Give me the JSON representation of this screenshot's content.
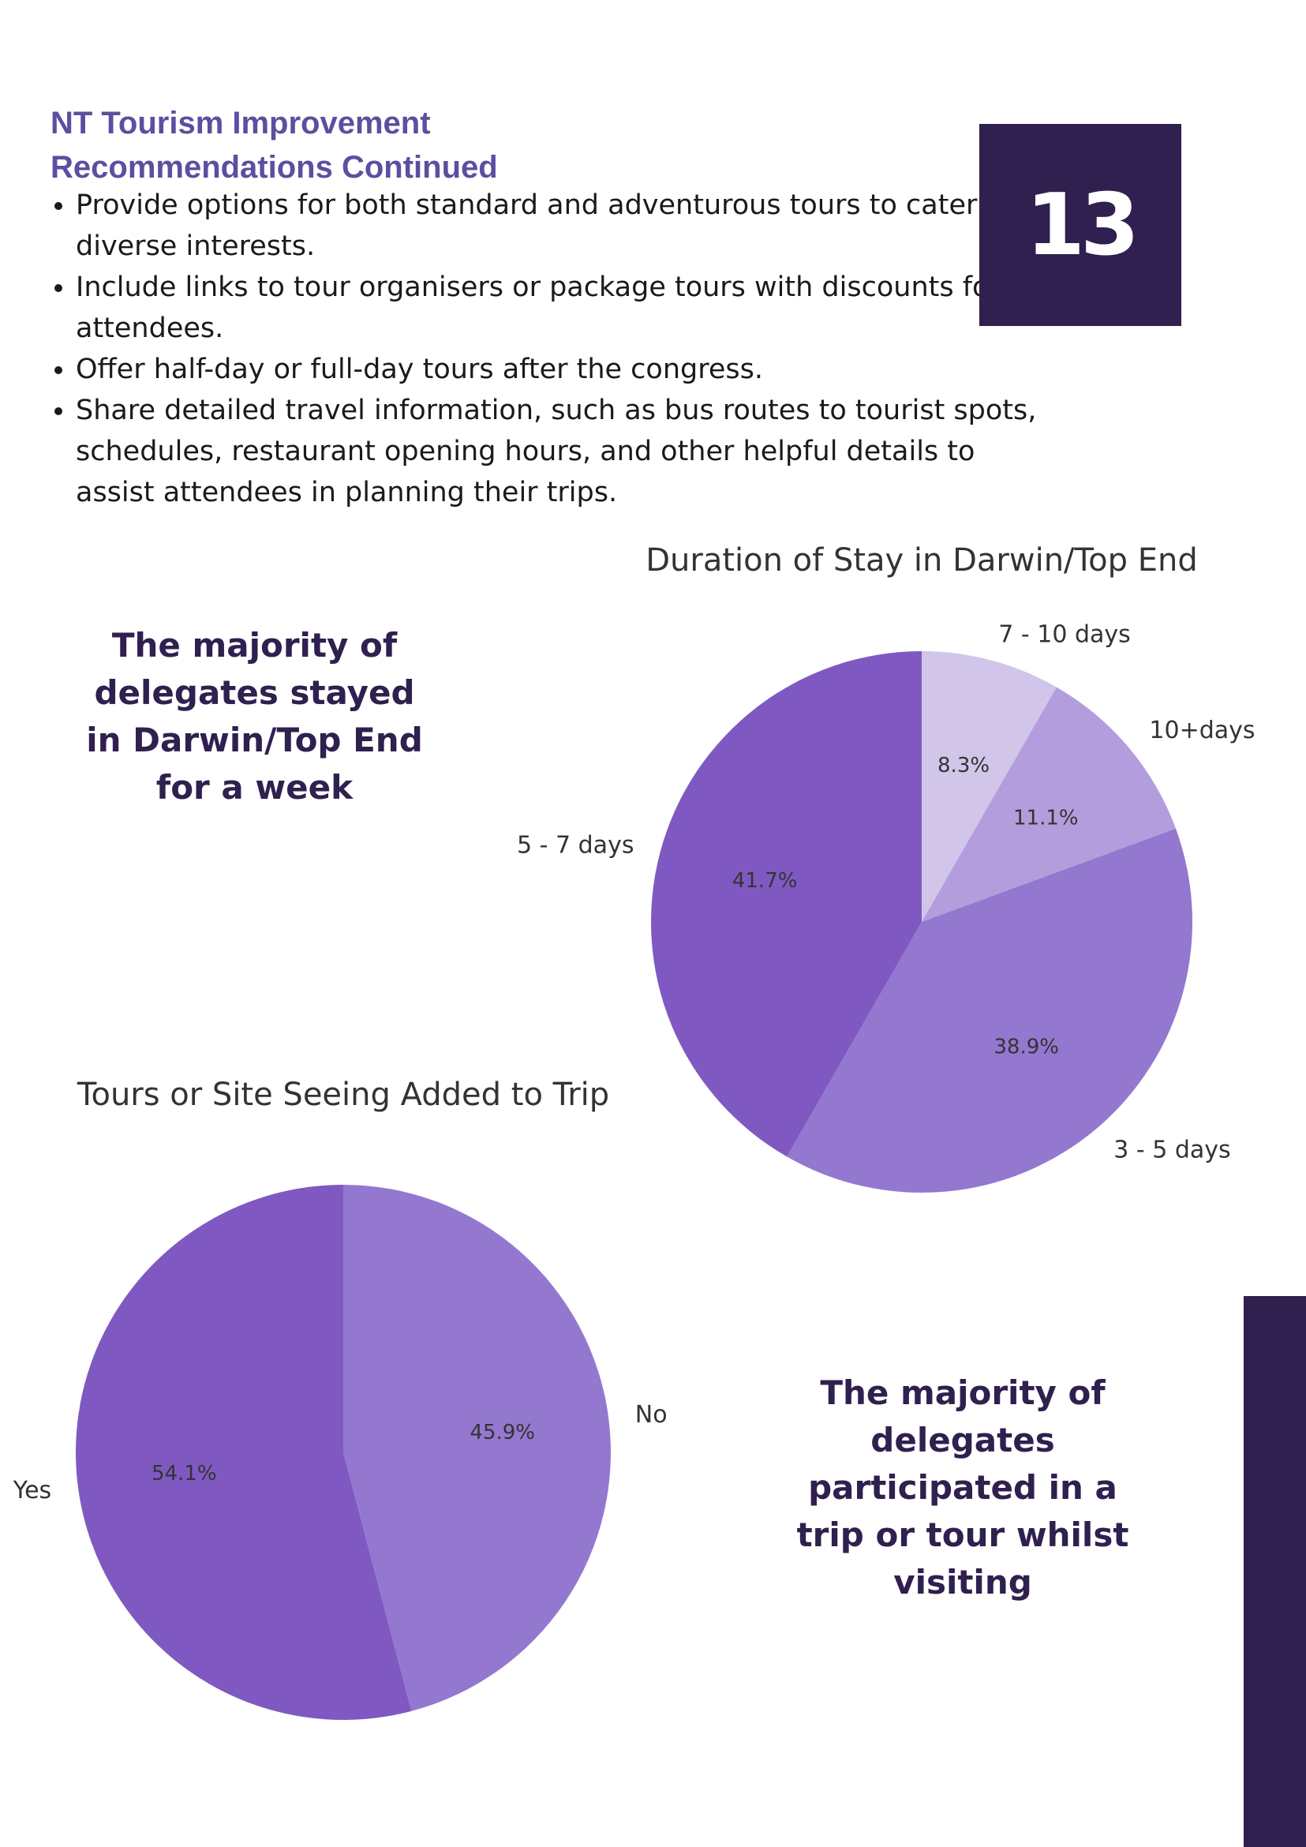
{
  "page": {
    "heading_line1": "NT Tourism Improvement",
    "heading_line2": "Recommendations Continued",
    "page_number": "13",
    "bullets": [
      "Provide options for both standard and adventurous tours to cater to diverse interests.",
      "Include links to tour organisers or package tours with discounts for attendees.",
      "Offer half-day or full-day tours after the congress.",
      "Share detailed travel information, such as bus routes to tourist spots, schedules, restaurant opening hours, and other helpful details to assist attendees in planning their trips."
    ],
    "callout_stay": "The majority of delegates stayed in Darwin/Top End for a week",
    "callout_tours": "The majority of delegates participated in a trip or tour whilst visiting"
  },
  "colors": {
    "brand_dark": "#2f204f",
    "heading": "#5b4fa0"
  },
  "chart_data": [
    {
      "type": "pie",
      "title": "Duration of Stay in Darwin/Top End",
      "categories": [
        "7 - 10 days",
        "10+days",
        "3 - 5 days",
        "5 - 7 days"
      ],
      "values": [
        8.3,
        11.1,
        38.9,
        41.7
      ],
      "labels": [
        "8.3%",
        "11.1%",
        "38.9%",
        "41.7%"
      ],
      "colors": [
        "#d1c5ea",
        "#b39ddc",
        "#9478cf",
        "#7f59c1"
      ],
      "start_angle": "top",
      "direction": "clockwise"
    },
    {
      "type": "pie",
      "title": "Tours or Site Seeing Added to Trip",
      "categories": [
        "No",
        "Yes"
      ],
      "values": [
        45.9,
        54.1
      ],
      "labels": [
        "45.9%",
        "54.1%"
      ],
      "colors": [
        "#9478cf",
        "#7f59c1"
      ],
      "start_angle": "top",
      "direction": "clockwise"
    }
  ]
}
